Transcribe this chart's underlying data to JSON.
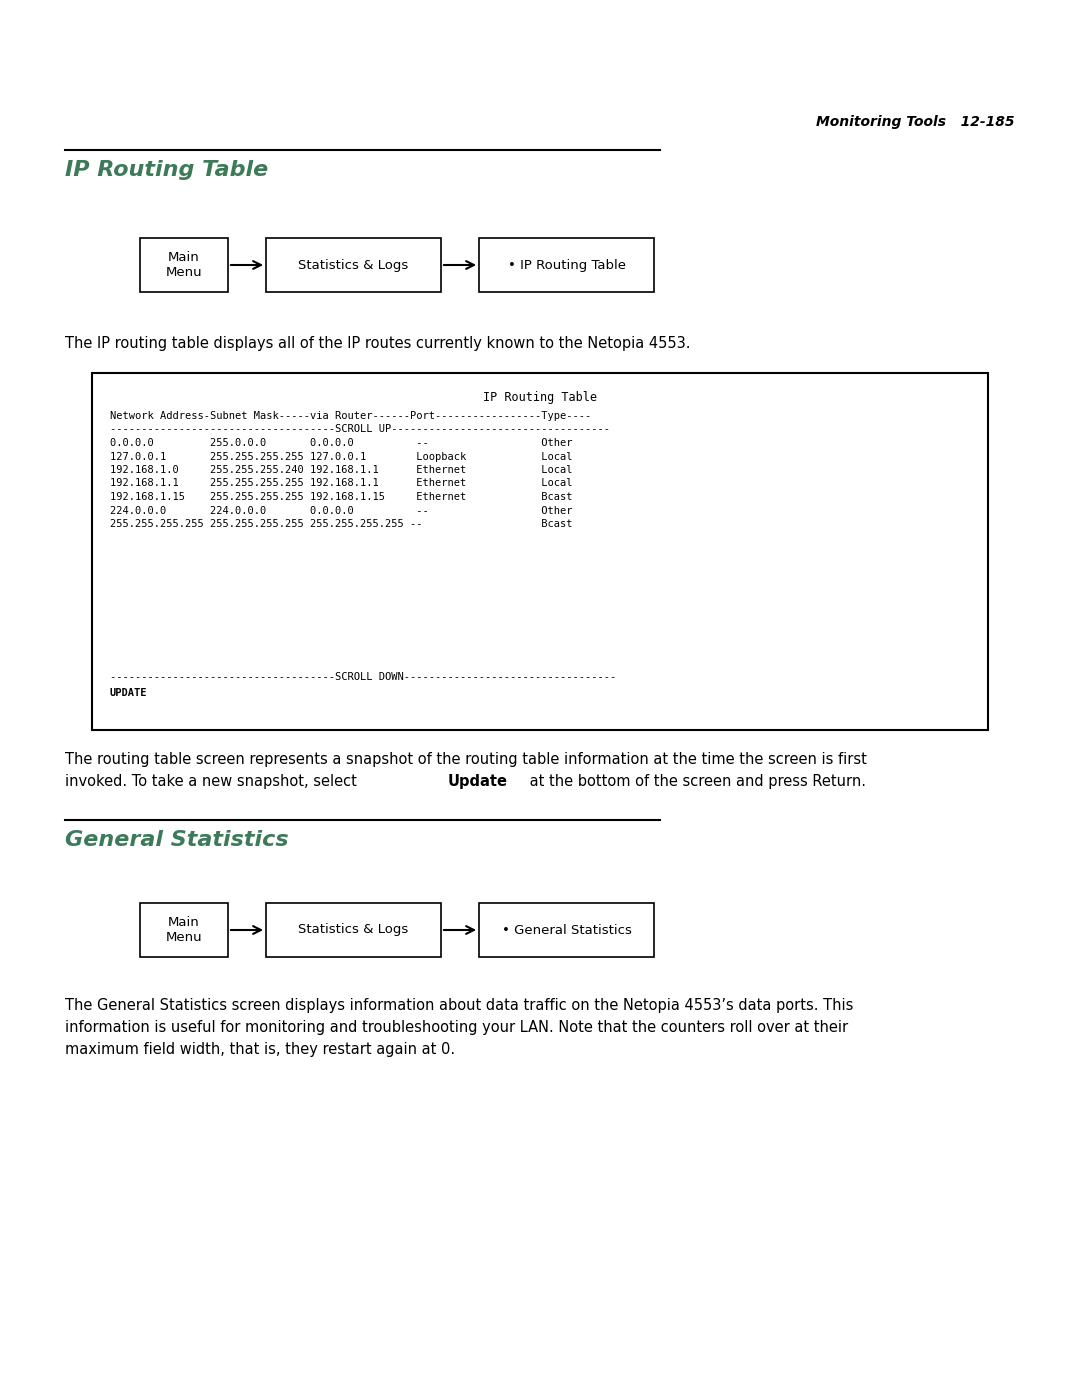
{
  "bg_color": "#ffffff",
  "header_text": "Monitoring Tools   12-185",
  "section1_title": "IP Routing Table",
  "section2_title": "General Statistics",
  "diagram1": {
    "box1_label": "Main\nMenu",
    "box2_label": "Statistics & Logs",
    "box3_label": "• IP Routing Table"
  },
  "diagram2": {
    "box1_label": "Main\nMenu",
    "box2_label": "Statistics & Logs",
    "box3_label": "• General Statistics"
  },
  "intro_text1": "The IP routing table displays all of the IP routes currently known to the Netopia 4553.",
  "terminal_box_title": "IP Routing Table",
  "terminal_line0": "Network Address-Subnet Mask-----via Router------Port-----------------Type----",
  "terminal_line1": "------------------------------------SCROLL UP-----------------------------------",
  "terminal_lines": [
    "0.0.0.0         255.0.0.0       0.0.0.0          --                  Other",
    "127.0.0.1       255.255.255.255 127.0.0.1        Loopback            Local",
    "192.168.1.0     255.255.255.240 192.168.1.1      Ethernet            Local",
    "192.168.1.1     255.255.255.255 192.168.1.1      Ethernet            Local",
    "192.168.1.15    255.255.255.255 192.168.1.15     Ethernet            Bcast",
    "224.0.0.0       224.0.0.0       0.0.0.0          --                  Other",
    "255.255.255.255 255.255.255.255 255.255.255.255 --                   Bcast"
  ],
  "terminal_scroll_down": "------------------------------------SCROLL DOWN----------------------------------",
  "terminal_update": "UPDATE",
  "para2_line1": "The routing table screen represents a snapshot of the routing table information at the time the screen is first",
  "para2_line2_pre": "invoked. To take a new snapshot, select ",
  "para2_line2_bold": "Update",
  "para2_line2_post": " at the bottom of the screen and press Return.",
  "para3_line1": "The General Statistics screen displays information about data traffic on the Netopia 4553’s data ports. This",
  "para3_line2": "information is useful for monitoring and troubleshooting your LAN. Note that the counters roll over at their",
  "para3_line3": "maximum field width, that is, they restart again at 0.",
  "title_color": "#3d7a5a",
  "text_color": "#000000",
  "header_color": "#000000",
  "mono_font_size": 7.5,
  "body_font_size": 10.5,
  "title_font_size": 16
}
